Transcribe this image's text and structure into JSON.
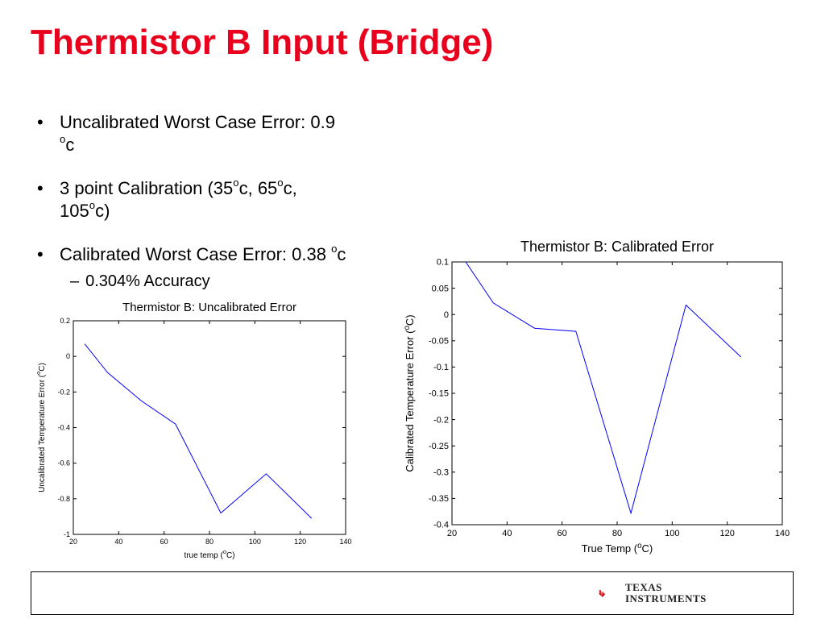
{
  "slide": {
    "title": "Thermistor B Input (Bridge)",
    "bullets": [
      {
        "text_a": "Uncalibrated Worst Case Error: 0.9",
        "text_b": "c",
        "sup": "o"
      },
      {
        "pre": "3 point Calibration (35",
        "mid1": "c, 65",
        "mid2": "c,",
        "line2_pre": "105",
        "line2_post": "c)",
        "sup": "o"
      },
      {
        "text_a": "Calibrated Worst Case Error: 0.38 ",
        "text_b": "c",
        "sup": "o"
      }
    ],
    "sub_bullet": "0.304% Accuracy",
    "sub_dash": "–",
    "bullet_char": "•"
  },
  "footer": {
    "logo_word1": "Texas",
    "logo_word2": "Instruments",
    "logo_icon": "texas-state-icon"
  },
  "chart_data": [
    {
      "type": "line",
      "title": "Thermistor B: Uncalibrated Error",
      "xlabel": "true temp (oC)",
      "xlabel_pre": "true temp (",
      "xlabel_sup": "o",
      "xlabel_post": "C)",
      "ylabel": "Uncalibrated Temperature Error (oC)",
      "ylabel_pre": "Uncalibrated Temperature Error (",
      "ylabel_sup": "o",
      "ylabel_post": "C)",
      "xlim": [
        20,
        140
      ],
      "ylim": [
        -1,
        0.2
      ],
      "xticks": [
        20,
        40,
        60,
        80,
        100,
        120,
        140
      ],
      "yticks": [
        -1,
        -0.8,
        -0.6,
        -0.4,
        -0.2,
        0,
        0.2
      ],
      "series": [
        {
          "x": [
            25,
            35,
            50,
            65,
            85,
            105,
            125
          ],
          "y": [
            0.07,
            -0.09,
            -0.25,
            -0.38,
            -0.88,
            -0.66,
            -0.91
          ],
          "color": "#0000ff"
        }
      ]
    },
    {
      "type": "line",
      "title": "Thermistor B: Calibrated Error",
      "xlabel": "True Temp (oC)",
      "xlabel_pre": "True Temp (",
      "xlabel_sup": "o",
      "xlabel_post": "C)",
      "ylabel": "Calibrated Temperature Error (oC)",
      "ylabel_pre": "Calibrated Temperature Error (",
      "ylabel_sup": "o",
      "ylabel_post": "C)",
      "xlim": [
        20,
        140
      ],
      "ylim": [
        -0.4,
        0.1
      ],
      "xticks": [
        20,
        40,
        60,
        80,
        100,
        120,
        140
      ],
      "yticks": [
        -0.4,
        -0.35,
        -0.3,
        -0.25,
        -0.2,
        -0.15,
        -0.1,
        -0.05,
        0,
        0.05,
        0.1
      ],
      "series": [
        {
          "x": [
            25,
            35,
            50,
            65,
            85,
            105,
            125
          ],
          "y": [
            0.1,
            0.022,
            -0.026,
            -0.032,
            -0.378,
            0.018,
            -0.081
          ],
          "color": "#0000ff"
        }
      ]
    }
  ],
  "colors": {
    "title": "#e8001c",
    "logo_red": "#d4161c"
  }
}
